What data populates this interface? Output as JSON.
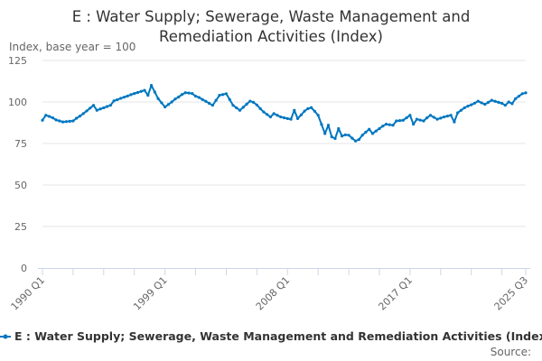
{
  "chart_data": {
    "type": "line",
    "title": "E : Water Supply; Sewerage, Waste Management and Remediation Activities (Index)",
    "ylabel": "Index, base year = 100",
    "xlabel": "",
    "x_start": "1990 Q1",
    "x_end": "2025 Q3",
    "x_frequency": "quarterly",
    "xtick_labels": [
      "1990 Q1",
      "1999 Q1",
      "2008 Q1",
      "2017 Q1",
      "2025 Q3"
    ],
    "yticks": [
      0,
      25,
      50,
      75,
      100,
      125
    ],
    "ylim": [
      0,
      125
    ],
    "grid": true,
    "legend_placement": "bottom",
    "series": [
      {
        "name": "E : Water Supply; Sewerage, Waste Management and Remediation Activities (Index)",
        "color": "#0077c0",
        "values": [
          89,
          92,
          91.3,
          90.5,
          89.2,
          88.6,
          88,
          88.2,
          88.4,
          88.6,
          90.2,
          91.5,
          93,
          94.6,
          96.3,
          98,
          95,
          95.8,
          96.5,
          97.3,
          98,
          100.7,
          101.4,
          102.2,
          102.9,
          103.6,
          104.4,
          105.1,
          105.7,
          106.4,
          107,
          104,
          110,
          106,
          102,
          99.5,
          97,
          98.5,
          100,
          101.8,
          103,
          104.5,
          105.6,
          105.4,
          105.1,
          103.5,
          102.7,
          101.5,
          100.4,
          99.2,
          98,
          101,
          104,
          104.5,
          105,
          101.5,
          98,
          96.5,
          95,
          96.8,
          98.7,
          100.5,
          99.8,
          98.2,
          96,
          94,
          92.5,
          91,
          93,
          92,
          91,
          90.5,
          90,
          89.6,
          95,
          90,
          92.2,
          94.5,
          96,
          96.6,
          94.4,
          92,
          86.5,
          81,
          86,
          79,
          78,
          84,
          79.5,
          80.2,
          80,
          78.2,
          76.5,
          77.4,
          80,
          81.8,
          83.6,
          81,
          82.5,
          84,
          85.5,
          86.6,
          86.3,
          86,
          88.6,
          88.8,
          89,
          90.5,
          92,
          86.6,
          89.6,
          89.1,
          88.6,
          90.5,
          92,
          90.8,
          89.6,
          90.3,
          91,
          91.5,
          92,
          88,
          93.5,
          95,
          96.5,
          97.5,
          98.3,
          99.3,
          100.5,
          99.5,
          98.6,
          99.8,
          101,
          100.4,
          99.8,
          99.2,
          98,
          100,
          99,
          102,
          103.5,
          105,
          105.5
        ]
      }
    ]
  },
  "title_lines": [
    "E : Water Supply; Sewerage, Waste Management and",
    "Remediation Activities (Index)"
  ],
  "legend_label": "E : Water Supply; Sewerage, Waste Management and Remediation Activities (Index",
  "source_label": "Source:",
  "colors": {
    "line": "#0077c0",
    "grid": "#e6e6e6",
    "axis": "#ccd6eb",
    "text": "#333333",
    "muted": "#666666"
  }
}
